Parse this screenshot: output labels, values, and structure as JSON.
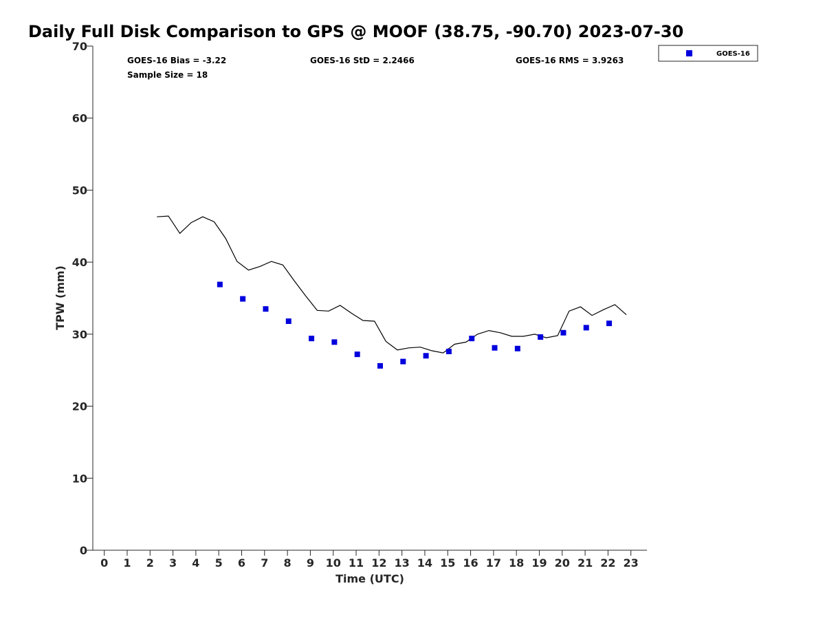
{
  "chart_data": {
    "type": "line+scatter",
    "title": "Daily Full Disk Comparison to GPS @ MOOF (38.75, -90.70) 2023-07-30",
    "xlabel": "Time (UTC)",
    "ylabel": "TPW (mm)",
    "xlim": [
      -0.5,
      23.7
    ],
    "ylim": [
      0,
      70
    ],
    "x_ticks": [
      "0",
      "1",
      "2",
      "3",
      "4",
      "5",
      "6",
      "7",
      "8",
      "9",
      "10",
      "11",
      "12",
      "13",
      "14",
      "15",
      "16",
      "17",
      "18",
      "19",
      "20",
      "21",
      "22",
      "23"
    ],
    "y_ticks": [
      "0",
      "10",
      "20",
      "30",
      "40",
      "50",
      "60",
      "70"
    ],
    "grid": false,
    "legend_placement": "top-right, outside plot",
    "stats": {
      "bias": "GOES-16 Bias = -3.22",
      "std": "GOES-16 StD = 2.2466",
      "rms": "GOES-16 RMS = 3.9263",
      "sample": "Sample Size = 18"
    },
    "series": [
      {
        "name": "GOES-16",
        "kind": "scatter",
        "marker": "square",
        "color": "#0000dd",
        "points": [
          [
            5.05,
            36.9
          ],
          [
            6.05,
            34.9
          ],
          [
            7.05,
            33.5
          ],
          [
            8.05,
            31.8
          ],
          [
            9.05,
            29.4
          ],
          [
            10.05,
            28.9
          ],
          [
            11.05,
            27.2
          ],
          [
            12.05,
            25.6
          ],
          [
            13.05,
            26.2
          ],
          [
            14.05,
            27.0
          ],
          [
            15.05,
            27.6
          ],
          [
            16.05,
            29.4
          ],
          [
            17.05,
            28.1
          ],
          [
            18.05,
            28.0
          ],
          [
            19.05,
            29.6
          ],
          [
            20.05,
            30.2
          ],
          [
            21.05,
            30.9
          ],
          [
            22.05,
            31.5
          ]
        ]
      },
      {
        "kind": "line",
        "color": "#000000",
        "points": [
          [
            2.3,
            46.3
          ],
          [
            2.8,
            46.4
          ],
          [
            3.3,
            44.0
          ],
          [
            3.8,
            45.5
          ],
          [
            4.3,
            46.3
          ],
          [
            4.8,
            45.6
          ],
          [
            5.3,
            43.3
          ],
          [
            5.8,
            40.1
          ],
          [
            6.3,
            38.9
          ],
          [
            6.8,
            39.4
          ],
          [
            7.3,
            40.1
          ],
          [
            7.8,
            39.6
          ],
          [
            8.3,
            37.4
          ],
          [
            8.8,
            35.3
          ],
          [
            9.3,
            33.3
          ],
          [
            9.8,
            33.2
          ],
          [
            10.3,
            34.0
          ],
          [
            10.8,
            32.9
          ],
          [
            11.3,
            31.9
          ],
          [
            11.8,
            31.8
          ],
          [
            12.3,
            29.0
          ],
          [
            12.8,
            27.8
          ],
          [
            13.3,
            28.1
          ],
          [
            13.8,
            28.2
          ],
          [
            14.3,
            27.7
          ],
          [
            14.8,
            27.4
          ],
          [
            15.3,
            28.6
          ],
          [
            15.8,
            28.9
          ],
          [
            16.3,
            30.0
          ],
          [
            16.8,
            30.5
          ],
          [
            17.3,
            30.2
          ],
          [
            17.8,
            29.7
          ],
          [
            18.3,
            29.7
          ],
          [
            18.8,
            30.0
          ],
          [
            19.3,
            29.5
          ],
          [
            19.8,
            29.8
          ],
          [
            20.3,
            33.2
          ],
          [
            20.8,
            33.8
          ],
          [
            21.3,
            32.6
          ],
          [
            21.8,
            33.4
          ],
          [
            22.3,
            34.1
          ],
          [
            22.8,
            32.7
          ]
        ]
      }
    ]
  }
}
